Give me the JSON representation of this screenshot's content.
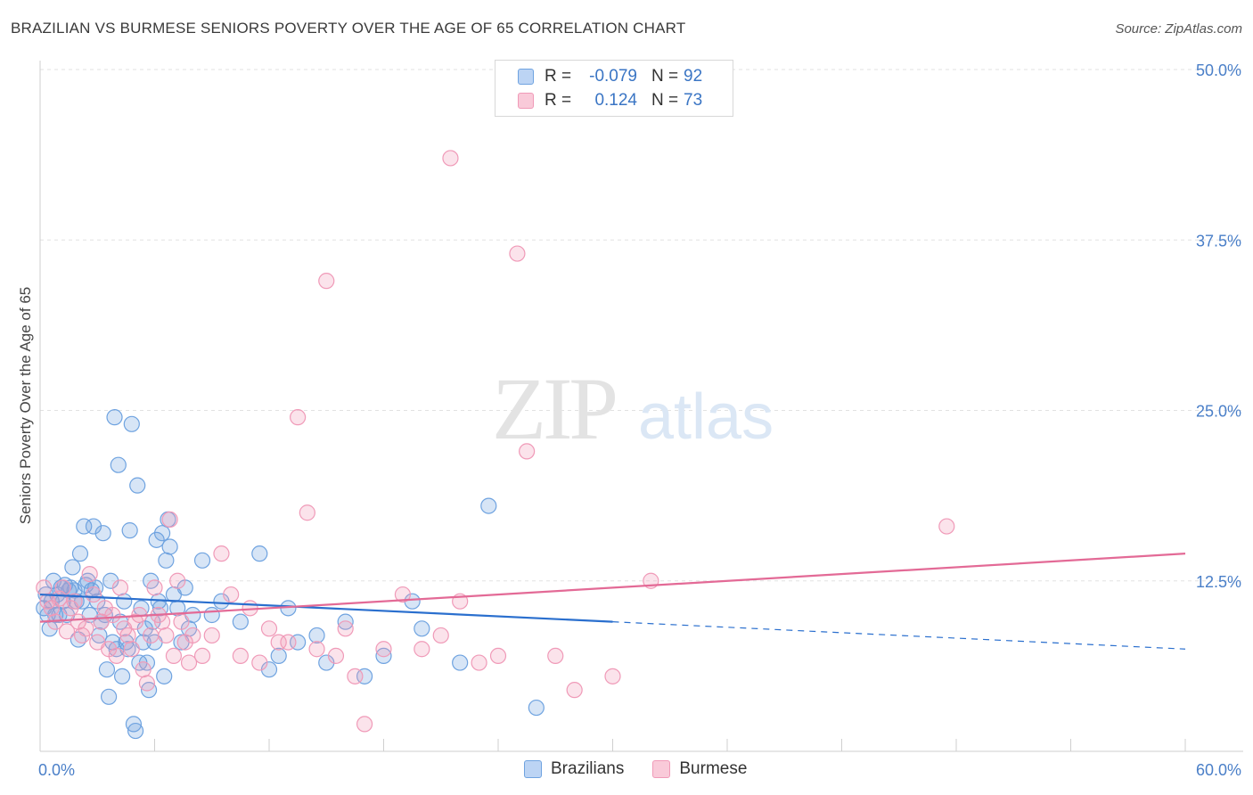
{
  "header": {
    "title": "BRAZILIAN VS BURMESE SENIORS POVERTY OVER THE AGE OF 65 CORRELATION CHART",
    "source": "Source: ZipAtlas.com"
  },
  "watermark": {
    "zip": "ZIP",
    "atlas": "atlas"
  },
  "legend_top": {
    "rows": [
      {
        "r_label": "R =",
        "r_value": "-0.079",
        "n_label": "N =",
        "n_value": "92",
        "color": "#6fa3e0"
      },
      {
        "r_label": "R =",
        "r_value": "0.124",
        "n_label": "N =",
        "n_value": "73",
        "color": "#f09ab8"
      }
    ]
  },
  "legend_bottom": {
    "items": [
      {
        "label": "Brazilians",
        "color": "#6fa3e0"
      },
      {
        "label": "Burmese",
        "color": "#f09ab8"
      }
    ]
  },
  "chart_data": {
    "type": "scatter",
    "title": "BRAZILIAN VS BURMESE SENIORS POVERTY OVER THE AGE OF 65 CORRELATION CHART",
    "xlabel": "",
    "ylabel": "Seniors Poverty Over the Age of 65",
    "xlim": [
      0,
      60
    ],
    "ylim": [
      0,
      50
    ],
    "x_tick_labels": [
      "0.0%",
      "60.0%"
    ],
    "y_ticks": [
      12.5,
      25.0,
      37.5,
      50.0
    ],
    "y_tick_labels": [
      "12.5%",
      "25.0%",
      "37.5%",
      "50.0%"
    ],
    "grid": true,
    "legend_position": "bottom",
    "series": [
      {
        "name": "Brazilians",
        "color": "#5b95de",
        "trend": {
          "x": [
            0,
            30,
            60
          ],
          "y": [
            11.5,
            9.5,
            7.5
          ],
          "solid_until": 30
        },
        "points": [
          [
            0.2,
            10.5
          ],
          [
            0.3,
            11.5
          ],
          [
            0.4,
            10.0
          ],
          [
            0.5,
            9.0
          ],
          [
            0.6,
            11.0
          ],
          [
            0.7,
            12.5
          ],
          [
            0.8,
            10.0
          ],
          [
            0.9,
            11.5
          ],
          [
            1.0,
            10.0
          ],
          [
            1.1,
            12.0
          ],
          [
            1.2,
            11.0
          ],
          [
            1.3,
            12.2
          ],
          [
            1.4,
            10.0
          ],
          [
            1.5,
            11.8
          ],
          [
            1.6,
            12.0
          ],
          [
            1.7,
            13.5
          ],
          [
            1.8,
            11.8
          ],
          [
            1.9,
            11.0
          ],
          [
            2.0,
            8.2
          ],
          [
            2.1,
            14.5
          ],
          [
            2.2,
            11.0
          ],
          [
            2.3,
            16.5
          ],
          [
            2.4,
            12.2
          ],
          [
            2.5,
            12.5
          ],
          [
            2.6,
            10.0
          ],
          [
            2.7,
            11.8
          ],
          [
            2.8,
            16.5
          ],
          [
            2.9,
            12.0
          ],
          [
            3.0,
            11.0
          ],
          [
            3.1,
            8.5
          ],
          [
            3.2,
            9.5
          ],
          [
            3.3,
            16.0
          ],
          [
            3.4,
            10.0
          ],
          [
            3.5,
            6.0
          ],
          [
            3.6,
            4.0
          ],
          [
            3.7,
            12.5
          ],
          [
            3.8,
            8.0
          ],
          [
            3.9,
            24.5
          ],
          [
            4.0,
            7.5
          ],
          [
            4.1,
            21.0
          ],
          [
            4.2,
            9.5
          ],
          [
            4.3,
            5.5
          ],
          [
            4.4,
            11.0
          ],
          [
            4.5,
            8.0
          ],
          [
            4.6,
            7.5
          ],
          [
            4.7,
            16.2
          ],
          [
            4.8,
            24.0
          ],
          [
            4.9,
            2.0
          ],
          [
            5.0,
            1.5
          ],
          [
            5.1,
            19.5
          ],
          [
            5.2,
            6.5
          ],
          [
            5.3,
            10.5
          ],
          [
            5.4,
            8.0
          ],
          [
            5.5,
            9.0
          ],
          [
            5.6,
            6.5
          ],
          [
            5.7,
            4.5
          ],
          [
            5.8,
            12.5
          ],
          [
            5.9,
            9.5
          ],
          [
            6.0,
            8.0
          ],
          [
            6.1,
            15.5
          ],
          [
            6.2,
            11.0
          ],
          [
            6.3,
            10.5
          ],
          [
            6.4,
            16.0
          ],
          [
            6.5,
            5.5
          ],
          [
            6.6,
            14.0
          ],
          [
            6.7,
            17.0
          ],
          [
            6.8,
            15.0
          ],
          [
            7.0,
            11.5
          ],
          [
            7.2,
            10.5
          ],
          [
            7.4,
            8.0
          ],
          [
            7.6,
            12.0
          ],
          [
            7.8,
            9.0
          ],
          [
            8.0,
            10.0
          ],
          [
            8.5,
            14.0
          ],
          [
            9.0,
            10.0
          ],
          [
            9.5,
            11.0
          ],
          [
            10.5,
            9.5
          ],
          [
            11.5,
            14.5
          ],
          [
            12.0,
            6.0
          ],
          [
            12.5,
            7.0
          ],
          [
            13.0,
            10.5
          ],
          [
            13.5,
            8.0
          ],
          [
            14.5,
            8.5
          ],
          [
            15.0,
            6.5
          ],
          [
            16.0,
            9.5
          ],
          [
            17.0,
            5.5
          ],
          [
            18.0,
            7.0
          ],
          [
            19.5,
            11.0
          ],
          [
            20.0,
            9.0
          ],
          [
            22.0,
            6.5
          ],
          [
            23.5,
            18.0
          ],
          [
            26.0,
            3.2
          ]
        ]
      },
      {
        "name": "Burmese",
        "color": "#ee8fb0",
        "trend": {
          "x": [
            0,
            60
          ],
          "y": [
            9.5,
            14.5
          ]
        },
        "points": [
          [
            0.2,
            12.0
          ],
          [
            0.4,
            11.0
          ],
          [
            0.6,
            10.5
          ],
          [
            0.8,
            9.5
          ],
          [
            1.0,
            11.2
          ],
          [
            1.2,
            12.0
          ],
          [
            1.4,
            8.8
          ],
          [
            1.6,
            10.5
          ],
          [
            1.8,
            11.0
          ],
          [
            2.0,
            9.5
          ],
          [
            2.2,
            8.5
          ],
          [
            2.4,
            9.0
          ],
          [
            2.6,
            13.0
          ],
          [
            2.8,
            11.5
          ],
          [
            3.0,
            8.0
          ],
          [
            3.2,
            9.5
          ],
          [
            3.4,
            10.5
          ],
          [
            3.6,
            7.5
          ],
          [
            3.8,
            10.0
          ],
          [
            4.0,
            7.0
          ],
          [
            4.2,
            12.0
          ],
          [
            4.4,
            9.0
          ],
          [
            4.6,
            8.5
          ],
          [
            4.8,
            7.5
          ],
          [
            5.0,
            9.5
          ],
          [
            5.2,
            10.0
          ],
          [
            5.4,
            6.0
          ],
          [
            5.6,
            5.0
          ],
          [
            5.8,
            8.5
          ],
          [
            6.0,
            12.0
          ],
          [
            6.2,
            10.0
          ],
          [
            6.4,
            9.5
          ],
          [
            6.6,
            8.5
          ],
          [
            6.8,
            17.0
          ],
          [
            7.0,
            7.0
          ],
          [
            7.2,
            12.5
          ],
          [
            7.4,
            9.5
          ],
          [
            7.6,
            8.0
          ],
          [
            7.8,
            6.5
          ],
          [
            8.0,
            8.5
          ],
          [
            8.5,
            7.0
          ],
          [
            9.0,
            8.5
          ],
          [
            9.5,
            14.5
          ],
          [
            10.0,
            11.5
          ],
          [
            10.5,
            7.0
          ],
          [
            11.0,
            10.5
          ],
          [
            11.5,
            6.5
          ],
          [
            12.0,
            9.0
          ],
          [
            12.5,
            8.0
          ],
          [
            13.0,
            8.0
          ],
          [
            13.5,
            24.5
          ],
          [
            14.0,
            17.5
          ],
          [
            14.5,
            7.5
          ],
          [
            15.0,
            34.5
          ],
          [
            15.5,
            7.0
          ],
          [
            16.0,
            9.0
          ],
          [
            16.5,
            5.5
          ],
          [
            17.0,
            2.0
          ],
          [
            18.0,
            7.5
          ],
          [
            19.0,
            11.5
          ],
          [
            20.0,
            7.5
          ],
          [
            21.0,
            8.5
          ],
          [
            21.5,
            43.5
          ],
          [
            22.0,
            11.0
          ],
          [
            23.0,
            6.5
          ],
          [
            24.0,
            7.0
          ],
          [
            25.0,
            36.5
          ],
          [
            25.5,
            22.0
          ],
          [
            27.0,
            7.0
          ],
          [
            28.0,
            4.5
          ],
          [
            30.0,
            5.5
          ],
          [
            32.0,
            12.5
          ],
          [
            47.5,
            16.5
          ]
        ]
      }
    ]
  }
}
